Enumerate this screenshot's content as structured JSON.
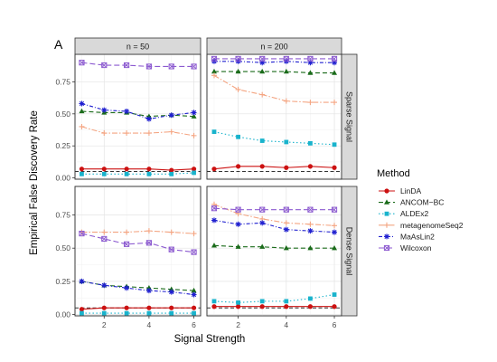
{
  "panel_tag": "A",
  "chart_data": {
    "type": "line",
    "xlabel": "Signal Strength",
    "ylabel": "Empirical False Discovery Rate",
    "x": [
      1,
      2,
      3,
      4,
      5,
      6
    ],
    "xticks": [
      2,
      4,
      6
    ],
    "xlim": [
      0.7,
      6.3
    ],
    "ylim": [
      -0.01,
      0.965
    ],
    "yticks": [
      "0.00",
      "0.25",
      "0.50",
      "0.75"
    ],
    "reference_line": 0.05,
    "grid": true,
    "legend_position": "right",
    "legend_title": "Method",
    "columns": [
      "n = 50",
      "n = 200"
    ],
    "rows": [
      "Sparse Signal",
      "Dense Signal"
    ],
    "series_styles": [
      {
        "name": "LinDA",
        "color": "#cc1111",
        "marker": "circle",
        "dash": ""
      },
      {
        "name": "ANCOM−BC",
        "color": "#1a6b1a",
        "marker": "triangle",
        "dash": "5,3"
      },
      {
        "name": "ALDEx2",
        "color": "#19b3cc",
        "marker": "square",
        "dash": "1.5,2.5"
      },
      {
        "name": "metagenomeSeq2",
        "color": "#f4a582",
        "marker": "plus",
        "dash": "6,2,1.5,2"
      },
      {
        "name": "MaAsLin2",
        "color": "#2020d0",
        "marker": "star",
        "dash": "4,2,1,2"
      },
      {
        "name": "Wilcoxon",
        "color": "#8c5ad0",
        "marker": "boxx",
        "dash": "6,3"
      }
    ],
    "panels": [
      {
        "col": 0,
        "row": 0,
        "series": [
          {
            "name": "LinDA",
            "values": [
              0.07,
              0.07,
              0.07,
              0.07,
              0.06,
              0.07
            ]
          },
          {
            "name": "ANCOM−BC",
            "values": [
              0.52,
              0.51,
              0.51,
              0.48,
              0.49,
              0.48
            ]
          },
          {
            "name": "ALDEx2",
            "values": [
              0.03,
              0.03,
              0.03,
              0.03,
              0.03,
              0.04
            ]
          },
          {
            "name": "metagenomeSeq2",
            "values": [
              0.4,
              0.35,
              0.35,
              0.35,
              0.36,
              0.33
            ]
          },
          {
            "name": "MaAsLin2",
            "values": [
              0.58,
              0.53,
              0.52,
              0.46,
              0.49,
              0.51
            ]
          },
          {
            "name": "Wilcoxon",
            "values": [
              0.9,
              0.88,
              0.88,
              0.87,
              0.87,
              0.87
            ]
          }
        ]
      },
      {
        "col": 1,
        "row": 0,
        "series": [
          {
            "name": "LinDA",
            "values": [
              0.07,
              0.09,
              0.09,
              0.08,
              0.09,
              0.08
            ]
          },
          {
            "name": "ANCOM−BC",
            "values": [
              0.83,
              0.83,
              0.83,
              0.83,
              0.82,
              0.82
            ]
          },
          {
            "name": "ALDEx2",
            "values": [
              0.36,
              0.32,
              0.29,
              0.28,
              0.27,
              0.26
            ]
          },
          {
            "name": "metagenomeSeq2",
            "values": [
              0.8,
              0.69,
              0.65,
              0.6,
              0.59,
              0.59
            ]
          },
          {
            "name": "MaAsLin2",
            "values": [
              0.91,
              0.91,
              0.9,
              0.91,
              0.9,
              0.9
            ]
          },
          {
            "name": "Wilcoxon",
            "values": [
              0.93,
              0.93,
              0.93,
              0.93,
              0.93,
              0.93
            ]
          }
        ]
      },
      {
        "col": 0,
        "row": 1,
        "series": [
          {
            "name": "LinDA",
            "values": [
              0.04,
              0.05,
              0.05,
              0.05,
              0.05,
              0.05
            ]
          },
          {
            "name": "ANCOM−BC",
            "values": [
              0.25,
              0.22,
              0.21,
              0.2,
              0.19,
              0.18
            ]
          },
          {
            "name": "ALDEx2",
            "values": [
              0.01,
              0.01,
              0.01,
              0.01,
              0.01,
              0.01
            ]
          },
          {
            "name": "metagenomeSeq2",
            "values": [
              0.62,
              0.62,
              0.62,
              0.63,
              0.62,
              0.61
            ]
          },
          {
            "name": "MaAsLin2",
            "values": [
              0.25,
              0.22,
              0.2,
              0.18,
              0.17,
              0.15
            ]
          },
          {
            "name": "Wilcoxon",
            "values": [
              0.61,
              0.57,
              0.53,
              0.54,
              0.49,
              0.47
            ]
          }
        ]
      },
      {
        "col": 1,
        "row": 1,
        "series": [
          {
            "name": "LinDA",
            "values": [
              0.06,
              0.06,
              0.06,
              0.06,
              0.06,
              0.06
            ]
          },
          {
            "name": "ANCOM−BC",
            "values": [
              0.52,
              0.51,
              0.51,
              0.5,
              0.5,
              0.5
            ]
          },
          {
            "name": "ALDEx2",
            "values": [
              0.1,
              0.09,
              0.1,
              0.1,
              0.12,
              0.15
            ]
          },
          {
            "name": "metagenomeSeq2",
            "values": [
              0.83,
              0.76,
              0.72,
              0.69,
              0.68,
              0.67
            ]
          },
          {
            "name": "MaAsLin2",
            "values": [
              0.71,
              0.68,
              0.69,
              0.64,
              0.63,
              0.62
            ]
          },
          {
            "name": "Wilcoxon",
            "values": [
              0.8,
              0.79,
              0.79,
              0.79,
              0.79,
              0.79
            ]
          }
        ]
      }
    ]
  }
}
